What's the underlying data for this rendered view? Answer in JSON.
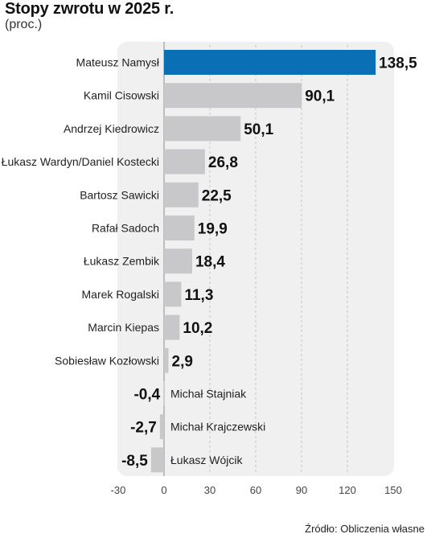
{
  "title": "Stopy zwrotu w 2025 r.",
  "subtitle": "(proc.)",
  "source": "Źródło: Obliczenia własne",
  "colors": {
    "highlight": "#0a6fb5",
    "bar": "#c8c8cb",
    "panel": "#f0f0f1"
  },
  "chart_data": {
    "type": "bar",
    "orientation": "horizontal",
    "categories": [
      "Mateusz Namysł",
      "Kamil Cisowski",
      "Andrzej Kiedrowicz",
      "Łukasz Wardyn/Daniel Kostecki",
      "Bartosz Sawicki",
      "Rafał Sadoch",
      "Łukasz Zembik",
      "Marek Rogalski",
      "Marcin Kiepas",
      "Sobiesław Kozłowski",
      "Michał Stajniak",
      "Michał Krajczewski",
      "Łukasz Wójcik"
    ],
    "values": [
      138.5,
      90.1,
      50.1,
      26.8,
      22.5,
      19.9,
      18.4,
      11.3,
      10.2,
      2.9,
      -0.4,
      -2.7,
      -8.5
    ],
    "value_labels": [
      "138,5",
      "90,1",
      "50,1",
      "26,8",
      "22,5",
      "19,9",
      "18,4",
      "11,3",
      "10,2",
      "2,9",
      "-0,4",
      "-2,7",
      "-8,5"
    ],
    "highlight_index": 0,
    "xlim": [
      -30,
      150
    ],
    "xticks": [
      -30,
      0,
      30,
      60,
      90,
      120,
      150
    ],
    "xtick_labels": [
      "-30",
      "0",
      "30",
      "60",
      "90",
      "120",
      "150"
    ],
    "grid": "vertical-dashed"
  }
}
